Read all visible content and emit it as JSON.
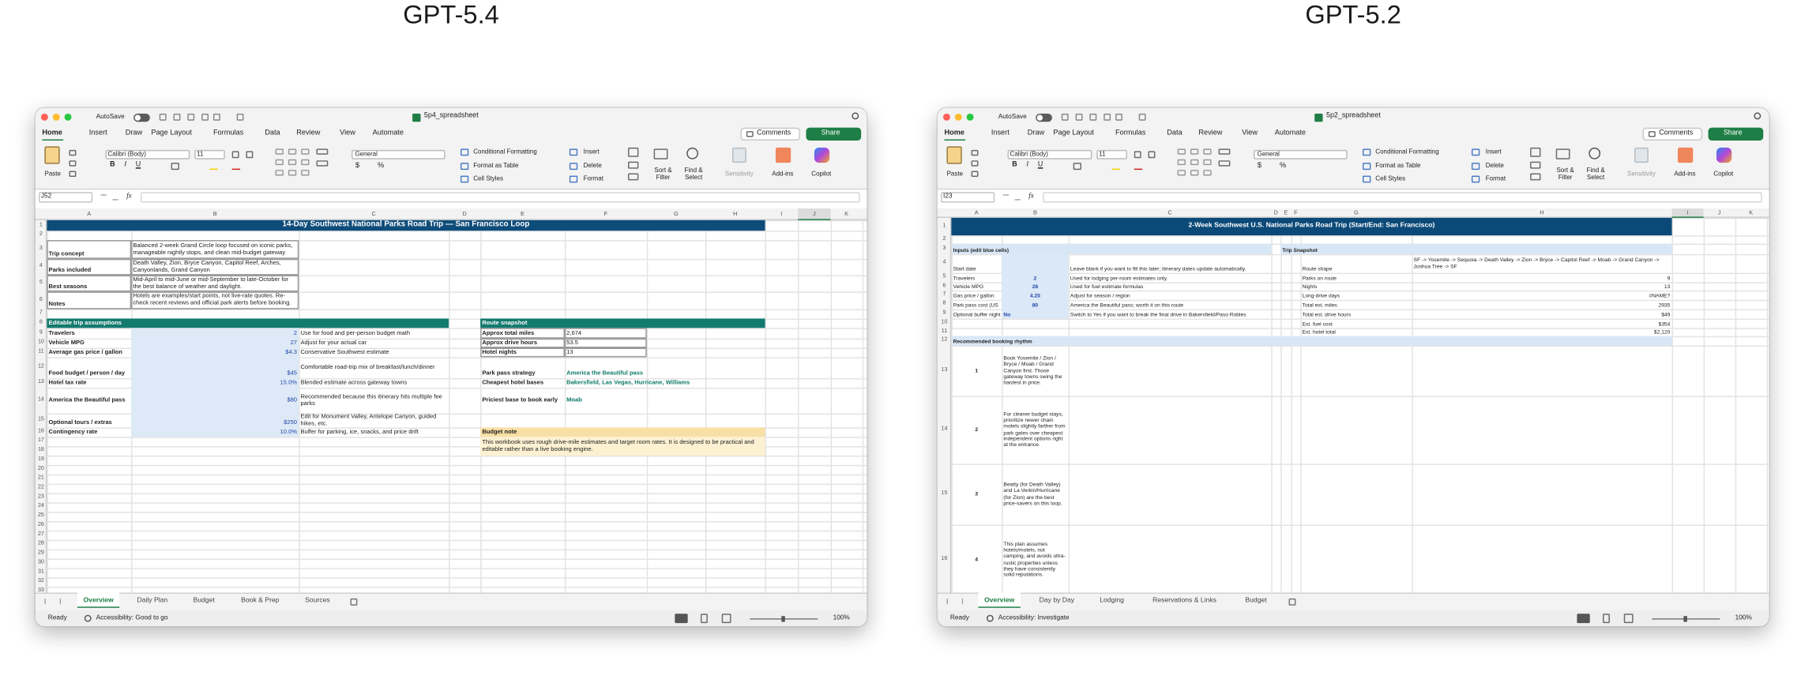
{
  "ribbon": {
    "autosave": "AutoSave",
    "tabs": [
      "Home",
      "Insert",
      "Draw",
      "Page Layout",
      "Formulas",
      "Data",
      "Review",
      "View",
      "Automate"
    ],
    "comments": "Comments",
    "share": "Share",
    "paste": "Paste",
    "font": "Calibri (Body)",
    "font_size": "11",
    "style_buttons": [
      "B",
      "I",
      "U"
    ],
    "number_format": "General",
    "number_buttons": [
      "$",
      "%"
    ],
    "styles": [
      "Conditional Formatting",
      "Format as Table",
      "Cell Styles"
    ],
    "cells": [
      "Insert",
      "Delete",
      "Format"
    ],
    "editing": [
      "Sort & Filter",
      "Find & Select"
    ],
    "tools": [
      "Sensitivity",
      "Add-ins",
      "Copilot"
    ],
    "fx": "fx",
    "status": "Ready",
    "zoom": "100%"
  },
  "windows": [
    {
      "label": "GPT-5.4",
      "file": "5p4_spreadsheet",
      "name_box": "J52",
      "accessibility": "Accessibility: Good to go",
      "selected_column": "J",
      "columns": [
        "A",
        "B",
        "C",
        "D",
        "E",
        "F",
        "G",
        "H",
        "I",
        "J",
        "K"
      ],
      "row_numbers": [
        1,
        2,
        3,
        4,
        5,
        6,
        7,
        8,
        9,
        10,
        11,
        12,
        13,
        14,
        15,
        16,
        17,
        18,
        19,
        20,
        21,
        22,
        23,
        24,
        25,
        26,
        27,
        28,
        29,
        30,
        31,
        32,
        33
      ],
      "sheet_tabs": [
        "Overview",
        "Daily Plan",
        "Budget",
        "Book & Prep",
        "Sources"
      ],
      "fills": [
        {
          "range": "A1:H1",
          "color": "#0e4c7a"
        },
        {
          "range": "A8:C8",
          "color": "#137a6f"
        },
        {
          "range": "E8:H8",
          "color": "#137a6f"
        },
        {
          "range": "B9:B16",
          "color": "#dde9f6"
        },
        {
          "range": "E16:H16",
          "color": "#f8dfa6"
        },
        {
          "range": "E17:H18",
          "color": "#fdf1d2"
        }
      ],
      "borders": [
        "A3:B6",
        "E9:F11"
      ],
      "cells": [
        {
          "cell": "A1:H1",
          "text": "14-Day Southwest National Parks Road Trip — San Francisco Loop",
          "bold": true,
          "color": "#ffffff",
          "align": "center"
        },
        {
          "cell": "A3",
          "text": "Trip concept",
          "bold": true
        },
        {
          "cell": "B3",
          "text": "Balanced 2-week Grand Circle loop focused on iconic parks, manageable nightly stops, and clean mid-budget gateway",
          "wrap": true
        },
        {
          "cell": "A4",
          "text": "Parks included",
          "bold": true
        },
        {
          "cell": "B4",
          "text": "Death Valley, Zion, Bryce Canyon, Capitol Reef, Arches, Canyonlands, Grand Canyon",
          "wrap": true
        },
        {
          "cell": "A5",
          "text": "Best seasons",
          "bold": true
        },
        {
          "cell": "B5",
          "text": "Mid-April to mid-June or mid-September to late-October for the best balance of weather and daylight.",
          "wrap": true
        },
        {
          "cell": "A6",
          "text": "Notes",
          "bold": true
        },
        {
          "cell": "B6",
          "text": "Hotels are examples/start points, not live-rate quotes. Re-check recent reviews and official park alerts before booking.",
          "wrap": true
        },
        {
          "cell": "A8",
          "text": "Editable trip assumptions",
          "bold": true,
          "color": "#ffffff"
        },
        {
          "cell": "E8",
          "text": "Route snapshot",
          "bold": true,
          "color": "#ffffff"
        },
        {
          "cell": "A9",
          "text": "Travelers",
          "bold": true
        },
        {
          "cell": "B9",
          "text": "2",
          "color": "#2346a8",
          "align": "right"
        },
        {
          "cell": "C9",
          "text": "Use for food and per-person budget math"
        },
        {
          "cell": "A10",
          "text": "Vehicle MPG",
          "bold": true
        },
        {
          "cell": "B10",
          "text": "27",
          "color": "#2346a8",
          "align": "right"
        },
        {
          "cell": "C10",
          "text": "Adjust for your actual car"
        },
        {
          "cell": "A11",
          "text": "Average gas price / gallon",
          "bold": true
        },
        {
          "cell": "B11",
          "text": "$4.3",
          "color": "#2346a8",
          "align": "right"
        },
        {
          "cell": "C11",
          "text": "Conservative Southwest estimate"
        },
        {
          "cell": "A12",
          "text": "Food budget / person / day",
          "bold": true
        },
        {
          "cell": "B12",
          "text": "$45",
          "color": "#2346a8",
          "align": "right"
        },
        {
          "cell": "C12",
          "text": "Comfortable road-trip mix of breakfast/lunch/dinner",
          "wrap": true
        },
        {
          "cell": "A13",
          "text": "Hotel tax rate",
          "bold": true
        },
        {
          "cell": "B13",
          "text": "15.0%",
          "color": "#2346a8",
          "align": "right"
        },
        {
          "cell": "C13",
          "text": "Blended estimate across gateway towns"
        },
        {
          "cell": "A14",
          "text": "America the Beautiful pass",
          "bold": true
        },
        {
          "cell": "B14",
          "text": "$80",
          "color": "#2346a8",
          "align": "right"
        },
        {
          "cell": "C14",
          "text": "Recommended because this itinerary hits multiple fee parks",
          "wrap": true
        },
        {
          "cell": "A15",
          "text": "Optional tours / extras",
          "bold": true
        },
        {
          "cell": "B15",
          "text": "$250",
          "color": "#2346a8",
          "align": "right"
        },
        {
          "cell": "C15",
          "text": "Edit for Monument Valley, Antelope Canyon, guided hikes, etc.",
          "wrap": true
        },
        {
          "cell": "A16",
          "text": "Contingency rate",
          "bold": true
        },
        {
          "cell": "B16",
          "text": "10.0%",
          "color": "#2346a8",
          "align": "right"
        },
        {
          "cell": "C16",
          "text": "Buffer for parking, ice, snacks, and price drift"
        },
        {
          "cell": "E9",
          "text": "Approx total miles",
          "bold": true
        },
        {
          "cell": "F9",
          "text": "2,674"
        },
        {
          "cell": "E10",
          "text": "Approx drive hours",
          "bold": true
        },
        {
          "cell": "F10",
          "text": "53.5"
        },
        {
          "cell": "E11",
          "text": "Hotel nights",
          "bold": true
        },
        {
          "cell": "F11",
          "text": "13"
        },
        {
          "cell": "E12",
          "text": "Park pass strategy",
          "bold": true
        },
        {
          "cell": "F12",
          "text": "America the Beautiful pass",
          "bold": true,
          "color": "#0f7a6a"
        },
        {
          "cell": "E13",
          "text": "Cheapest hotel bases",
          "bold": true
        },
        {
          "cell": "F13",
          "text": "Bakersfield, Las Vegas, Hurricane, Williams",
          "bold": true,
          "color": "#0f7a6a"
        },
        {
          "cell": "E14",
          "text": "Priciest base to book early",
          "bold": true
        },
        {
          "cell": "F14",
          "text": "Moab",
          "bold": true,
          "color": "#0f7a6a"
        },
        {
          "cell": "E16",
          "text": "Budget note",
          "bold": true
        },
        {
          "cell": "E17:H18",
          "text": "This workbook uses rough drive-mile estimates and target room rates. It is designed to be practical and editable rather than a live booking engine.",
          "wrap": true
        }
      ]
    },
    {
      "label": "GPT-5.2",
      "file": "5p2_spreadsheet",
      "name_box": "I23",
      "accessibility": "Accessibility: Investigate",
      "selected_column": "I",
      "columns": [
        "A",
        "B",
        "C",
        "D",
        "E",
        "F",
        "G",
        "H",
        "I",
        "J",
        "K"
      ],
      "row_numbers": [
        1,
        2,
        3,
        4,
        5,
        6,
        7,
        8,
        9,
        10,
        11,
        12,
        13,
        14,
        15,
        16
      ],
      "sheet_tabs": [
        "Overview",
        "Day by Day",
        "Lodging",
        "Reservations & Links",
        "Budget"
      ],
      "fills": [
        {
          "range": "A1:H1",
          "color": "#0b4a78"
        },
        {
          "range": "A3:C3",
          "color": "#d8e7f5"
        },
        {
          "range": "E3:H3",
          "color": "#d8e7f5"
        },
        {
          "range": "B4:B9",
          "color": "#dbe8f7"
        },
        {
          "range": "A12:H12",
          "color": "#d8e7f5"
        }
      ],
      "borders": [],
      "cells": [
        {
          "cell": "A1:H1",
          "text": "2-Week Southwest U.S. National Parks Road Trip (Start/End: San Francisco)",
          "bold": true,
          "color": "#ffffff",
          "align": "center"
        },
        {
          "cell": "A3",
          "text": "Inputs (edit blue cells)",
          "bold": true
        },
        {
          "cell": "E3",
          "text": "Trip Snapshot",
          "bold": true
        },
        {
          "cell": "A4",
          "text": "Start date"
        },
        {
          "cell": "C4",
          "text": "Leave blank if you want to fill this later; itinerary dates update automatically."
        },
        {
          "cell": "A5",
          "text": "Travelers"
        },
        {
          "cell": "B5",
          "text": "2",
          "color": "#2346a8",
          "bold": true,
          "align": "center"
        },
        {
          "cell": "C5",
          "text": "Used for lodging per-room estimates only."
        },
        {
          "cell": "A6",
          "text": "Vehicle MPG"
        },
        {
          "cell": "B6",
          "text": "28",
          "color": "#2346a8",
          "bold": true,
          "align": "center"
        },
        {
          "cell": "C6",
          "text": "Used for fuel estimate formulas"
        },
        {
          "cell": "A7",
          "text": "Gas price / gallon"
        },
        {
          "cell": "B7",
          "text": "4.25",
          "color": "#2346a8",
          "bold": true,
          "align": "center"
        },
        {
          "cell": "C7",
          "text": "Adjust for season / region"
        },
        {
          "cell": "A8",
          "text": "Park pass cost (US"
        },
        {
          "cell": "B8",
          "text": "80",
          "color": "#2346a8",
          "bold": true,
          "align": "center"
        },
        {
          "cell": "C8",
          "text": "America the Beautiful pass; worth it on this route"
        },
        {
          "cell": "A9",
          "text": "Optional buffer night"
        },
        {
          "cell": "B9",
          "text": "No",
          "color": "#2346a8",
          "bold": true
        },
        {
          "cell": "C9",
          "text": "Switch to Yes if you want to break the final drive in Bakersfield/Paso Robles"
        },
        {
          "cell": "G4",
          "text": "Route shape"
        },
        {
          "cell": "H4",
          "text": "SF -> Yosemite -> Sequoia -> Death Valley -> Zion -> Bryce -> Capitol Reef -> Moab -> Grand Canyon -> Joshua Tree -> SF",
          "wrap": true
        },
        {
          "cell": "G5",
          "text": "Parks on route"
        },
        {
          "cell": "H5",
          "text": "9",
          "align": "right"
        },
        {
          "cell": "G6",
          "text": "Nights"
        },
        {
          "cell": "H6",
          "text": "13",
          "align": "right"
        },
        {
          "cell": "G7",
          "text": "Long-drive days"
        },
        {
          "cell": "H7",
          "text": "#NAME?",
          "align": "right"
        },
        {
          "cell": "G8",
          "text": "Total est. miles"
        },
        {
          "cell": "H8",
          "text": "2935",
          "align": "right"
        },
        {
          "cell": "G9",
          "text": "Total est. drive hours"
        },
        {
          "cell": "H9",
          "text": "$49",
          "align": "right"
        },
        {
          "cell": "G10",
          "text": "Est. fuel cost"
        },
        {
          "cell": "H10",
          "text": "$354",
          "align": "right"
        },
        {
          "cell": "G11",
          "text": "Est. hotel total"
        },
        {
          "cell": "H11",
          "text": "$2,120",
          "align": "right"
        },
        {
          "cell": "A12",
          "text": "Recommended booking rhythm",
          "bold": true
        },
        {
          "cell": "A13",
          "text": "1",
          "bold": true,
          "align": "center"
        },
        {
          "cell": "B13",
          "text": "Book Yosemite / Zion / Bryce / Moab / Grand Canyon first. Those gateway towns swing the hardest in price.",
          "wrap": true
        },
        {
          "cell": "A14",
          "text": "2",
          "bold": true,
          "align": "center"
        },
        {
          "cell": "B14",
          "text": "For cleaner budget stays, prioritize newer chain motels slightly farther from park gates over cheapest independent options right at the entrance.",
          "wrap": true
        },
        {
          "cell": "A15",
          "text": "3",
          "bold": true,
          "align": "center"
        },
        {
          "cell": "B15",
          "text": "Beatty (for Death Valley) and La Verkin/Hurricane (for Zion) are the best price-savers on this loop.",
          "wrap": true
        },
        {
          "cell": "A16",
          "text": "4",
          "bold": true,
          "align": "center"
        },
        {
          "cell": "B16",
          "text": "This plan assumes hotels/motels, not camping, and avoids ultra-rustic properties unless they have consistently solid reputations.",
          "wrap": true
        }
      ]
    }
  ]
}
